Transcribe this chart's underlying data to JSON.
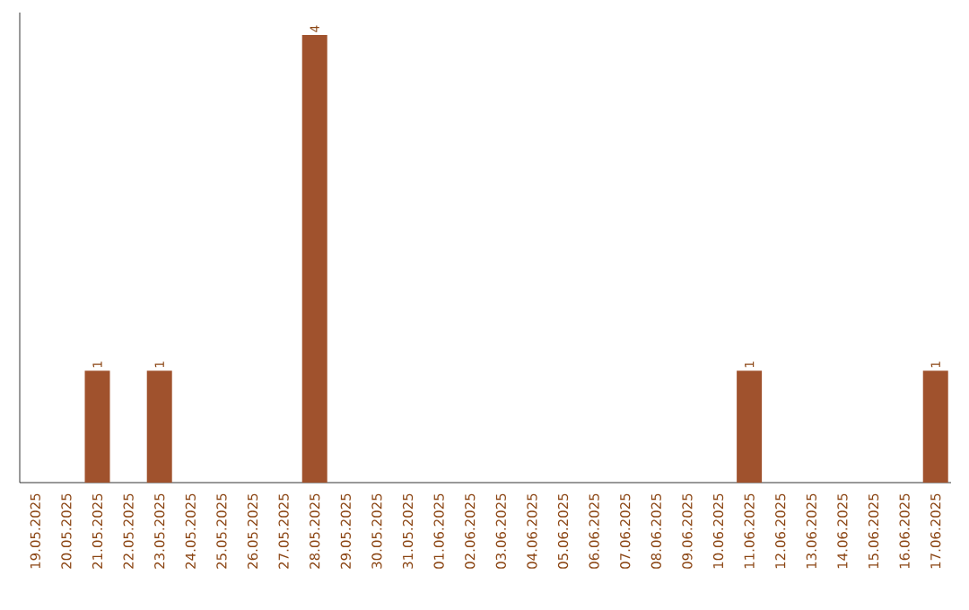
{
  "chart_data": {
    "type": "bar",
    "categories": [
      "19.05.2025",
      "20.05.2025",
      "21.05.2025",
      "22.05.2025",
      "23.05.2025",
      "24.05.2025",
      "25.05.2025",
      "26.05.2025",
      "27.05.2025",
      "28.05.2025",
      "29.05.2025",
      "30.05.2025",
      "31.05.2025",
      "01.06.2025",
      "02.06.2025",
      "03.06.2025",
      "04.06.2025",
      "05.06.2025",
      "06.06.2025",
      "07.06.2025",
      "08.06.2025",
      "09.06.2025",
      "10.06.2025",
      "11.06.2025",
      "12.06.2025",
      "13.06.2025",
      "14.06.2025",
      "15.06.2025",
      "16.06.2025",
      "17.06.2025"
    ],
    "values": [
      0,
      0,
      1,
      0,
      1,
      0,
      0,
      0,
      0,
      4,
      0,
      0,
      0,
      0,
      0,
      0,
      0,
      0,
      0,
      0,
      0,
      0,
      0,
      1,
      0,
      0,
      0,
      0,
      0,
      1
    ],
    "color": "#a0522d",
    "ylim": [
      0,
      4.2
    ],
    "tick_labels": "x",
    "value_labels": [
      null,
      null,
      "1",
      null,
      "1",
      null,
      null,
      null,
      null,
      "4",
      null,
      null,
      null,
      null,
      null,
      null,
      null,
      null,
      null,
      null,
      null,
      null,
      null,
      "1",
      null,
      null,
      null,
      null,
      null,
      "1"
    ]
  }
}
